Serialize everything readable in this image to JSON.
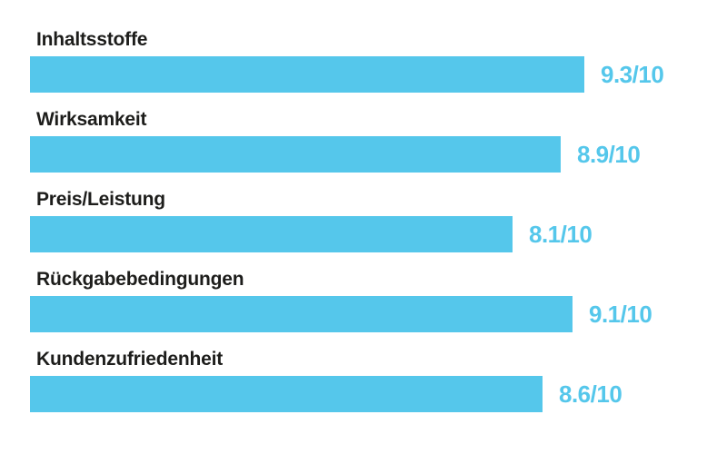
{
  "chart_data": {
    "type": "bar",
    "orientation": "horizontal",
    "title": "",
    "categories": [
      "Inhaltsstoffe",
      "Wirksamkeit",
      "Preis/Leistung",
      "Rückgabebedingungen",
      "Kundenzufriedenheit"
    ],
    "values": [
      9.3,
      8.9,
      8.1,
      9.1,
      8.6
    ],
    "value_labels": [
      "9.3/10",
      "8.9/10",
      "8.1/10",
      "9.1/10",
      "8.6/10"
    ],
    "max_value": 10,
    "grid": false,
    "legend": null,
    "colors": {
      "bar": "#55c7eb",
      "value_text": "#55c7eb",
      "label_text": "#1d1d1b",
      "background": "#ffffff"
    }
  }
}
